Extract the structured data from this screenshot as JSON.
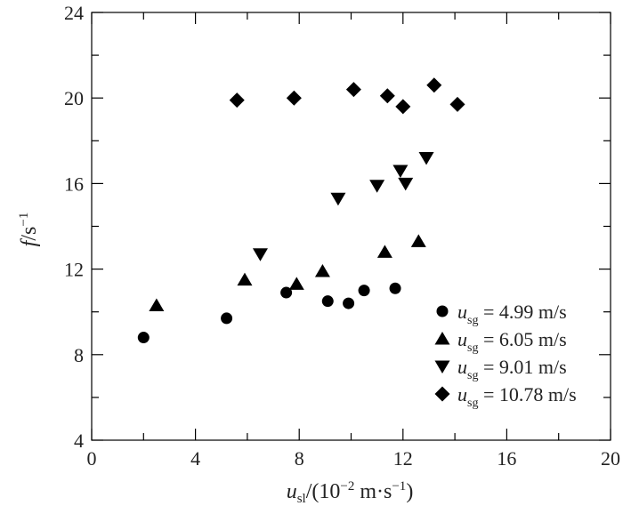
{
  "chart_data": {
    "type": "scatter",
    "xlim": [
      0,
      20
    ],
    "ylim": [
      4,
      24
    ],
    "x_ticks": [
      "0",
      "4",
      "8",
      "12",
      "16",
      "20"
    ],
    "y_ticks": [
      "4",
      "8",
      "12",
      "16",
      "20",
      "24"
    ],
    "xlabel": {
      "symbol": "u",
      "symbol_sub": "sl",
      "rest": "/(10",
      "exp": "−2",
      "unit": " m·s",
      "unit_exp": "−1",
      "close": ")"
    },
    "ylabel": {
      "symbol": "f",
      "rest": "/s",
      "exp": "−1"
    },
    "grid": false,
    "legend_position": "bottom-right",
    "series": [
      {
        "marker": "circle",
        "legend": {
          "symbol": "u",
          "sub": "sg",
          "value": "= 4.99 m/s"
        },
        "points": [
          [
            2.0,
            8.8
          ],
          [
            5.2,
            9.7
          ],
          [
            7.5,
            10.9
          ],
          [
            9.1,
            10.5
          ],
          [
            9.9,
            10.4
          ],
          [
            10.5,
            11.0
          ],
          [
            11.7,
            11.1
          ]
        ]
      },
      {
        "marker": "triangle-up",
        "legend": {
          "symbol": "u",
          "sub": "sg",
          "value": "= 6.05 m/s"
        },
        "points": [
          [
            2.5,
            10.3
          ],
          [
            5.9,
            11.5
          ],
          [
            7.9,
            11.3
          ],
          [
            8.9,
            11.9
          ],
          [
            11.3,
            12.8
          ],
          [
            12.6,
            13.3
          ]
        ]
      },
      {
        "marker": "triangle-down",
        "legend": {
          "symbol": "u",
          "sub": "sg",
          "value": "= 9.01 m/s"
        },
        "points": [
          [
            6.5,
            12.7
          ],
          [
            9.5,
            15.3
          ],
          [
            11.0,
            15.9
          ],
          [
            11.9,
            16.6
          ],
          [
            12.1,
            16.0
          ],
          [
            12.9,
            17.2
          ]
        ]
      },
      {
        "marker": "diamond",
        "legend": {
          "symbol": "u",
          "sub": "sg",
          "value": "= 10.78 m/s"
        },
        "points": [
          [
            5.6,
            19.9
          ],
          [
            7.8,
            20.0
          ],
          [
            10.1,
            20.4
          ],
          [
            11.4,
            20.1
          ],
          [
            12.0,
            19.6
          ],
          [
            13.2,
            20.6
          ],
          [
            14.1,
            19.7
          ]
        ]
      }
    ]
  }
}
